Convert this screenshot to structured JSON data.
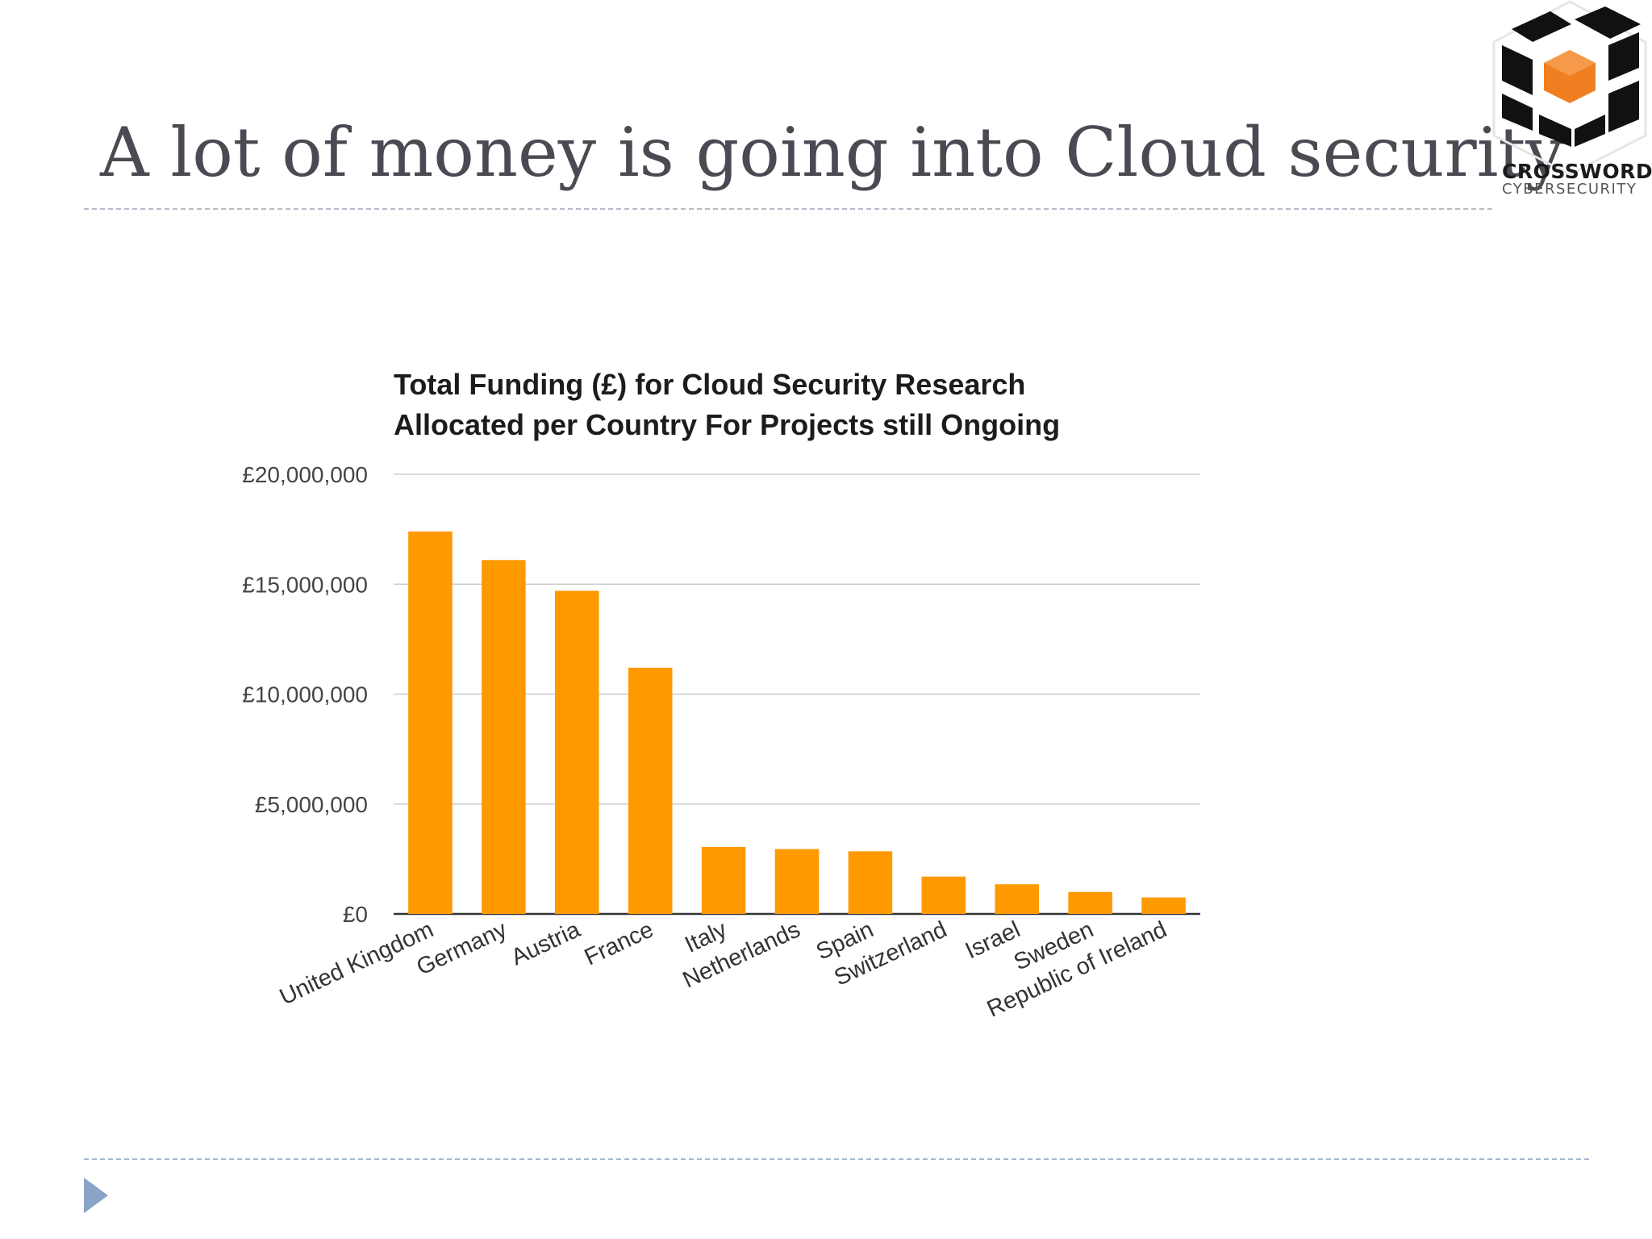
{
  "slide": {
    "title": "A lot of money is going into Cloud security"
  },
  "logo": {
    "line1": "CROSSWORD",
    "line2": "CYBERSECURITY"
  },
  "chart_data": {
    "type": "bar",
    "title_line1": "Total Funding (£) for Cloud Security Research",
    "title_line2": "Allocated per Country For Projects still Ongoing",
    "categories": [
      "United Kingdom",
      "Germany",
      "Austria",
      "France",
      "Italy",
      "Netherlands",
      "Spain",
      "Switzerland",
      "Israel",
      "Sweden",
      "Republic of Ireland"
    ],
    "values": [
      17400000,
      16100000,
      14700000,
      11200000,
      3050000,
      2950000,
      2850000,
      1700000,
      1350000,
      1000000,
      750000
    ],
    "ylim": [
      0,
      20000000
    ],
    "yticks": [
      0,
      5000000,
      10000000,
      15000000,
      20000000
    ],
    "ytick_labels": [
      "£0",
      "£5,000,000",
      "£10,000,000",
      "£15,000,000",
      "£20,000,000"
    ],
    "bar_color": "#ff9900",
    "grid": true,
    "legend": "none"
  }
}
